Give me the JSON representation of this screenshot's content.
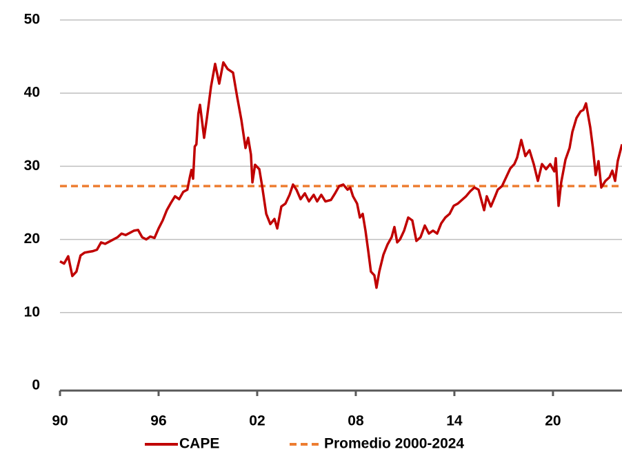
{
  "chart_data": {
    "type": "line",
    "xlim": [
      1990,
      2024.2
    ],
    "xticks": [
      {
        "value": 1990,
        "label": "90"
      },
      {
        "value": 1996,
        "label": "96"
      },
      {
        "value": 2002,
        "label": "02"
      },
      {
        "value": 2008,
        "label": "08"
      },
      {
        "value": 2014,
        "label": "14"
      },
      {
        "value": 2020,
        "label": "20"
      }
    ],
    "ylim": [
      0,
      50
    ],
    "yticks": [
      0,
      10,
      20,
      30,
      40,
      50
    ],
    "grid": true,
    "legend": "bottom",
    "series": [
      {
        "name": "CAPE",
        "color": "#c00000",
        "dash": false,
        "x": [
          1990.0,
          1990.25,
          1990.5,
          1990.75,
          1991.0,
          1991.25,
          1991.5,
          1991.75,
          1992.0,
          1992.25,
          1992.5,
          1992.75,
          1993.0,
          1993.5,
          1993.75,
          1994.0,
          1994.25,
          1994.5,
          1994.75,
          1995.0,
          1995.25,
          1995.5,
          1995.75,
          1996.0,
          1996.25,
          1996.5,
          1996.75,
          1997.0,
          1997.25,
          1997.5,
          1997.75,
          1997.9,
          1998.0,
          1998.1,
          1998.2,
          1998.3,
          1998.42,
          1998.52,
          1998.77,
          1998.94,
          1999.19,
          1999.44,
          1999.69,
          1999.94,
          2000.2,
          2000.53,
          2000.78,
          2001.04,
          2001.29,
          2001.45,
          2001.62,
          2001.71,
          2001.87,
          2002.13,
          2002.3,
          2002.55,
          2002.8,
          2003.05,
          2003.22,
          2003.47,
          2003.72,
          2003.97,
          2004.18,
          2004.39,
          2004.64,
          2004.9,
          2005.15,
          2005.44,
          2005.65,
          2005.9,
          2006.15,
          2006.49,
          2006.74,
          2006.99,
          2007.24,
          2007.5,
          2007.66,
          2007.83,
          2008.08,
          2008.25,
          2008.42,
          2008.59,
          2008.76,
          2008.92,
          2009.13,
          2009.26,
          2009.43,
          2009.68,
          2009.93,
          2010.18,
          2010.35,
          2010.52,
          2010.69,
          2010.94,
          2011.19,
          2011.44,
          2011.69,
          2011.94,
          2012.2,
          2012.45,
          2012.7,
          2012.95,
          2013.2,
          2013.45,
          2013.71,
          2013.96,
          2014.21,
          2014.46,
          2014.71,
          2014.97,
          2015.22,
          2015.47,
          2015.64,
          2015.81,
          2015.97,
          2016.22,
          2016.48,
          2016.64,
          2016.9,
          2017.15,
          2017.4,
          2017.65,
          2017.82,
          2018.07,
          2018.32,
          2018.57,
          2018.83,
          2019.08,
          2019.33,
          2019.58,
          2019.83,
          2020.08,
          2020.17,
          2020.34,
          2020.5,
          2020.76,
          2021.01,
          2021.18,
          2021.43,
          2021.68,
          2021.85,
          2022.01,
          2022.27,
          2022.43,
          2022.6,
          2022.77,
          2022.94,
          2023.19,
          2023.44,
          2023.61,
          2023.78,
          2023.94,
          2024.2
        ],
        "values": [
          17.0,
          16.7,
          17.7,
          15.0,
          15.6,
          17.8,
          18.2,
          18.3,
          18.4,
          18.6,
          19.6,
          19.4,
          19.7,
          20.3,
          20.8,
          20.6,
          20.9,
          21.2,
          21.3,
          20.3,
          20.0,
          20.4,
          20.2,
          21.5,
          22.6,
          24.0,
          25.0,
          25.9,
          25.5,
          26.5,
          26.8,
          28.5,
          29.5,
          28.3,
          32.7,
          33.0,
          37.2,
          38.4,
          33.9,
          36.6,
          40.9,
          44.0,
          41.3,
          44.2,
          43.3,
          42.8,
          39.5,
          36.3,
          32.5,
          33.9,
          31.6,
          27.8,
          30.2,
          29.6,
          27.3,
          23.5,
          22.1,
          22.8,
          21.5,
          24.5,
          24.9,
          26.1,
          27.5,
          26.8,
          25.5,
          26.3,
          25.2,
          26.1,
          25.2,
          26.1,
          25.2,
          25.4,
          26.3,
          27.3,
          27.5,
          26.8,
          27.1,
          25.9,
          24.9,
          23.0,
          23.5,
          21.2,
          18.4,
          15.6,
          15.1,
          13.4,
          15.6,
          17.9,
          19.3,
          20.3,
          21.7,
          19.6,
          20.0,
          21.2,
          23.0,
          22.6,
          19.8,
          20.3,
          21.9,
          20.8,
          21.2,
          20.8,
          22.2,
          23.0,
          23.5,
          24.6,
          24.9,
          25.4,
          25.9,
          26.6,
          27.1,
          26.8,
          25.4,
          24.0,
          25.9,
          24.5,
          25.9,
          26.8,
          27.3,
          28.5,
          29.7,
          30.3,
          31.2,
          33.6,
          31.4,
          32.2,
          30.3,
          28.0,
          30.3,
          29.6,
          30.3,
          29.3,
          31.1,
          24.6,
          27.8,
          30.9,
          32.5,
          34.7,
          36.6,
          37.5,
          37.7,
          38.6,
          35.3,
          32.5,
          28.8,
          30.7,
          27.1,
          28.0,
          28.5,
          29.4,
          28.0,
          30.7,
          33.0
        ]
      },
      {
        "name": "Promedio 2000-2024",
        "color": "#ed7d31",
        "dash": true,
        "x": [
          1990,
          2024.2
        ],
        "values": [
          27.3,
          27.3
        ]
      }
    ]
  }
}
